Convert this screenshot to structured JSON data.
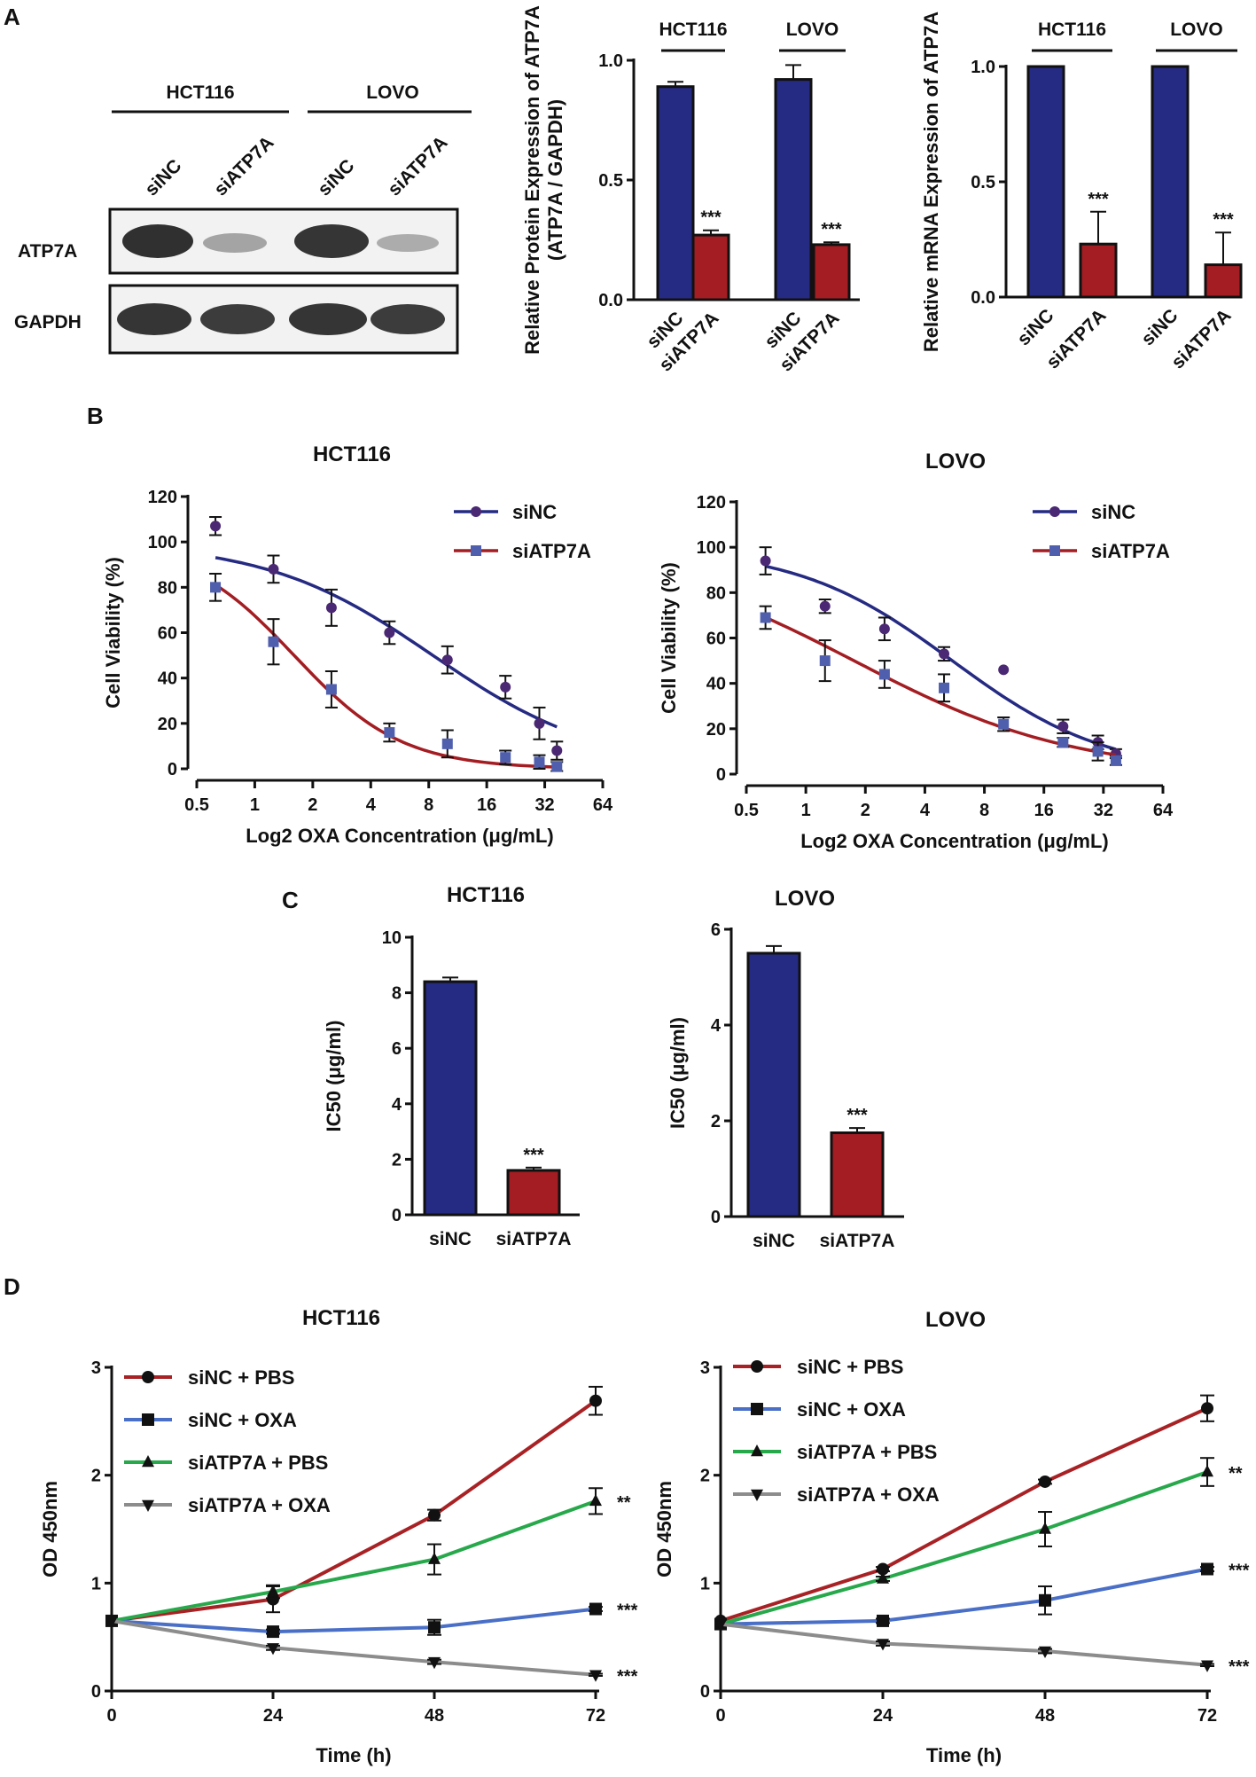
{
  "panels": {
    "A": "A",
    "B": "B",
    "C": "C",
    "D": "D"
  },
  "colors": {
    "navy": "#252a82",
    "red": "#a31d22",
    "purple": "#4b2873",
    "square_blue": "#4f5fae",
    "d_red": "#a82225",
    "d_blue": "#4a6fc6",
    "d_green": "#27a84b",
    "d_gray": "#8c8c8c"
  },
  "western_blot": {
    "cell_lines": [
      "HCT116",
      "LOVO"
    ],
    "lanes": [
      "siNC",
      "siATP7A",
      "siNC",
      "siATP7A"
    ],
    "rows": [
      "ATP7A",
      "GAPDH"
    ]
  },
  "chart_data": [
    {
      "id": "A_protein",
      "type": "bar",
      "title": "",
      "group_labels": [
        "HCT116",
        "LOVO"
      ],
      "categories": [
        "siNC",
        "siATP7A",
        "siNC",
        "siATP7A"
      ],
      "values": [
        0.89,
        0.27,
        0.92,
        0.23
      ],
      "errors": [
        0.02,
        0.02,
        0.06,
        0.01
      ],
      "significance": [
        "",
        "***",
        "",
        "***"
      ],
      "colors": [
        "#252a82",
        "#a31d22",
        "#252a82",
        "#a31d22"
      ],
      "xlabel": "",
      "ylabel": "Relative Protein Expression of ATP7A",
      "ylabel2": "(ATP7A / GAPDH)",
      "ylim": [
        0,
        1.0
      ],
      "yticks": [
        0.0,
        0.5,
        1.0
      ],
      "ytick_labels": [
        "0.0",
        "0.5",
        "1.0"
      ]
    },
    {
      "id": "A_mrna",
      "type": "bar",
      "title": "",
      "group_labels": [
        "HCT116",
        "LOVO"
      ],
      "categories": [
        "siNC",
        "siATP7A",
        "siNC",
        "siATP7A"
      ],
      "values": [
        1.0,
        0.23,
        1.0,
        0.14
      ],
      "errors": [
        0.0,
        0.14,
        0.0,
        0.14
      ],
      "significance": [
        "",
        "***",
        "",
        "***"
      ],
      "colors": [
        "#252a82",
        "#a31d22",
        "#252a82",
        "#a31d22"
      ],
      "xlabel": "",
      "ylabel": "Relative mRNA Expression of ATP7A",
      "ylim": [
        0,
        1.0
      ],
      "yticks": [
        0.0,
        0.5,
        1.0
      ],
      "ytick_labels": [
        "0.0",
        "0.5",
        "1.0"
      ]
    },
    {
      "id": "B_hct116",
      "type": "scatter",
      "title": "HCT116",
      "xlabel": "Log2 OXA Concentration (μg/mL)",
      "ylabel": "Cell Viability (%)",
      "xscale": "log2",
      "xlim": [
        0.5,
        64
      ],
      "xticks": [
        0.5,
        1,
        2,
        4,
        8,
        16,
        32,
        64
      ],
      "xtick_labels": [
        "0.5",
        "1",
        "2",
        "4",
        "8",
        "16",
        "32",
        "64"
      ],
      "ylim": [
        0,
        120
      ],
      "yticks": [
        0,
        20,
        40,
        60,
        80,
        100,
        120
      ],
      "ytick_labels": [
        "0",
        "20",
        "40",
        "60",
        "80",
        "100",
        "120"
      ],
      "legend": "top-right",
      "series": [
        {
          "name": "siNC",
          "marker": "circle",
          "color": "#4b2873",
          "line_color": "#252a82",
          "x": [
            0.625,
            1.25,
            2.5,
            5,
            10,
            20,
            30,
            37
          ],
          "y": [
            107,
            88,
            71,
            60,
            48,
            36,
            20,
            8
          ],
          "err": [
            4,
            6,
            8,
            5,
            6,
            5,
            7,
            4
          ],
          "fit": {
            "ic50": 8.4,
            "hill": 1.0,
            "top": 100,
            "bottom": 0
          }
        },
        {
          "name": "siATP7A",
          "marker": "square",
          "color": "#4f5fae",
          "line_color": "#a31d22",
          "x": [
            0.625,
            1.25,
            2.5,
            5,
            10,
            20,
            30,
            37
          ],
          "y": [
            80,
            56,
            35,
            16,
            11,
            5,
            3,
            1
          ],
          "err": [
            6,
            10,
            8,
            4,
            6,
            3,
            3,
            2
          ],
          "fit": {
            "ic50": 1.6,
            "hill": 1.55,
            "top": 100,
            "bottom": 0
          }
        }
      ]
    },
    {
      "id": "B_lovo",
      "type": "scatter",
      "title": "LOVO",
      "xlabel": "Log2 OXA Concentration (μg/mL)",
      "ylabel": "Cell Viability (%)",
      "xscale": "log2",
      "xlim": [
        0.5,
        64
      ],
      "xticks": [
        0.5,
        1,
        2,
        4,
        8,
        16,
        32,
        64
      ],
      "xtick_labels": [
        "0.5",
        "1",
        "2",
        "4",
        "8",
        "16",
        "32",
        "64"
      ],
      "ylim": [
        0,
        120
      ],
      "yticks": [
        0,
        20,
        40,
        60,
        80,
        100,
        120
      ],
      "ytick_labels": [
        "0",
        "20",
        "40",
        "60",
        "80",
        "100",
        "120"
      ],
      "legend": "top-right",
      "series": [
        {
          "name": "siNC",
          "marker": "circle",
          "color": "#4b2873",
          "line_color": "#252a82",
          "x": [
            0.625,
            1.25,
            2.5,
            5,
            10,
            20,
            30,
            37
          ],
          "y": [
            94,
            74,
            64,
            53,
            46,
            21,
            14,
            9
          ],
          "err": [
            6,
            3,
            5,
            3,
            0,
            3,
            3,
            2
          ],
          "fit": {
            "ic50": 5.5,
            "hill": 1.1,
            "top": 100,
            "bottom": 0
          }
        },
        {
          "name": "siATP7A",
          "marker": "square",
          "color": "#4f5fae",
          "line_color": "#a31d22",
          "x": [
            0.625,
            1.25,
            2.5,
            5,
            10,
            20,
            30,
            37
          ],
          "y": [
            69,
            50,
            44,
            38,
            22,
            14,
            10,
            6
          ],
          "err": [
            5,
            9,
            6,
            6,
            3,
            2,
            4,
            2
          ],
          "fit": {
            "ic50": 1.75,
            "hill": 0.78,
            "top": 100,
            "bottom": 0
          }
        }
      ]
    },
    {
      "id": "C_hct116",
      "type": "bar",
      "title": "HCT116",
      "categories": [
        "siNC",
        "siATP7A"
      ],
      "values": [
        8.4,
        1.6
      ],
      "errors": [
        0.15,
        0.1
      ],
      "significance": [
        "",
        "***"
      ],
      "colors": [
        "#252a82",
        "#a31d22"
      ],
      "xlabel": "",
      "ylabel": "IC50 (μg/ml)",
      "ylim": [
        0,
        10
      ],
      "yticks": [
        0,
        2,
        4,
        6,
        8,
        10
      ],
      "ytick_labels": [
        "0",
        "2",
        "4",
        "6",
        "8",
        "10"
      ]
    },
    {
      "id": "C_lovo",
      "type": "bar",
      "title": "LOVO",
      "categories": [
        "siNC",
        "siATP7A"
      ],
      "values": [
        5.5,
        1.75
      ],
      "errors": [
        0.15,
        0.1
      ],
      "significance": [
        "",
        "***"
      ],
      "colors": [
        "#252a82",
        "#a31d22"
      ],
      "xlabel": "",
      "ylabel": "IC50 (μg/ml)",
      "ylim": [
        0,
        6
      ],
      "yticks": [
        0,
        2,
        4,
        6
      ],
      "ytick_labels": [
        "0",
        "2",
        "4",
        "6"
      ]
    },
    {
      "id": "D_hct116",
      "type": "line",
      "title": "HCT116",
      "x": [
        0,
        24,
        48,
        72
      ],
      "xticks": [
        0,
        24,
        48,
        72
      ],
      "xtick_labels": [
        "0",
        "24",
        "48",
        "72"
      ],
      "xlim": [
        0,
        72
      ],
      "xlabel": "Time (h)",
      "ylabel": "OD 450nm",
      "ylim": [
        0,
        3
      ],
      "yticks": [
        0,
        1,
        2,
        3
      ],
      "ytick_labels": [
        "0",
        "1",
        "2",
        "3"
      ],
      "legend": "top-left",
      "series": [
        {
          "name": "siNC + PBS",
          "marker": "circle",
          "color": "#a82225",
          "values": [
            0.65,
            0.85,
            1.63,
            2.69
          ],
          "err": [
            0.0,
            0.12,
            0.05,
            0.13
          ],
          "significance": ""
        },
        {
          "name": "siNC + OXA",
          "marker": "square",
          "color": "#4a6fc6",
          "values": [
            0.65,
            0.55,
            0.59,
            0.76
          ],
          "err": [
            0.0,
            0.02,
            0.07,
            0.02
          ],
          "significance": "***"
        },
        {
          "name": "siATP7A + PBS",
          "marker": "triangle",
          "color": "#27a84b",
          "values": [
            0.65,
            0.92,
            1.22,
            1.76
          ],
          "err": [
            0.0,
            0.06,
            0.14,
            0.12
          ],
          "significance": "**"
        },
        {
          "name": "siATP7A + OXA",
          "marker": "triangle-down",
          "color": "#8c8c8c",
          "values": [
            0.65,
            0.4,
            0.27,
            0.15
          ],
          "err": [
            0.0,
            0.02,
            0.02,
            0.01
          ],
          "significance": "***"
        }
      ]
    },
    {
      "id": "D_lovo",
      "type": "line",
      "title": "LOVO",
      "x": [
        0,
        24,
        48,
        72
      ],
      "xticks": [
        0,
        24,
        48,
        72
      ],
      "xtick_labels": [
        "0",
        "24",
        "48",
        "72"
      ],
      "xlim": [
        0,
        72
      ],
      "xlabel": "Time (h)",
      "ylabel": "OD 450nm",
      "ylim": [
        0,
        3
      ],
      "yticks": [
        0,
        1,
        2,
        3
      ],
      "ytick_labels": [
        "0",
        "1",
        "2",
        "3"
      ],
      "legend": "top-left",
      "series": [
        {
          "name": "siNC + PBS",
          "marker": "circle",
          "color": "#a82225",
          "values": [
            0.65,
            1.13,
            1.94,
            2.62
          ],
          "err": [
            0.0,
            0.02,
            0.02,
            0.12
          ],
          "significance": ""
        },
        {
          "name": "siNC + OXA",
          "marker": "square",
          "color": "#4a6fc6",
          "values": [
            0.62,
            0.65,
            0.84,
            1.13
          ],
          "err": [
            0.0,
            0.02,
            0.13,
            0.02
          ],
          "significance": "***"
        },
        {
          "name": "siATP7A + PBS",
          "marker": "triangle",
          "color": "#27a84b",
          "values": [
            0.62,
            1.04,
            1.5,
            2.03
          ],
          "err": [
            0.0,
            0.02,
            0.16,
            0.13
          ],
          "significance": "**"
        },
        {
          "name": "siATP7A + OXA",
          "marker": "triangle-down",
          "color": "#8c8c8c",
          "values": [
            0.62,
            0.44,
            0.37,
            0.24
          ],
          "err": [
            0.0,
            0.02,
            0.02,
            0.01
          ],
          "significance": "***"
        }
      ]
    }
  ]
}
